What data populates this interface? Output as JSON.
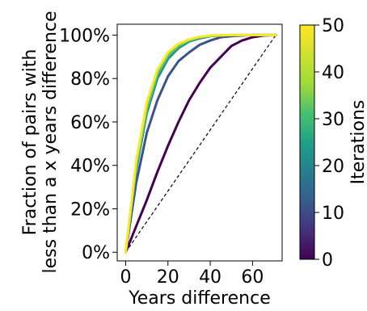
{
  "chart_data": {
    "type": "line",
    "xlabel": "Years difference",
    "ylabel_line1": "Fraction of pairs with",
    "ylabel_line2": "less than a x years difference",
    "xlim": [
      -4,
      74
    ],
    "ylim": [
      -0.04,
      1.05
    ],
    "x_ticks": [
      0,
      20,
      40,
      60
    ],
    "y_ticks": [
      0,
      0.2,
      0.4,
      0.6,
      0.8,
      1.0
    ],
    "y_tick_labels": [
      "0%",
      "20%",
      "40%",
      "60%",
      "80%",
      "100%"
    ],
    "colorbar": {
      "label": "Iterations",
      "range": [
        0,
        50
      ],
      "ticks": [
        0,
        10,
        20,
        30,
        40,
        50
      ],
      "colormap": "viridis"
    },
    "diagonal_reference": {
      "x": [
        0,
        71
      ],
      "y": [
        0,
        1
      ],
      "style": "dashed",
      "color": "#000000"
    },
    "series": [
      {
        "iteration": 0,
        "color": "#440154",
        "x": [
          0,
          5,
          10,
          15,
          20,
          25,
          30,
          35,
          40,
          45,
          50,
          55,
          60,
          65,
          71
        ],
        "y": [
          0,
          0.12,
          0.24,
          0.37,
          0.49,
          0.6,
          0.7,
          0.78,
          0.85,
          0.9,
          0.95,
          0.975,
          0.99,
          0.998,
          1.0
        ]
      },
      {
        "iteration": 10,
        "color": "#3b528b",
        "x": [
          0,
          5,
          10,
          15,
          20,
          25,
          30,
          35,
          40,
          45,
          50,
          55,
          60,
          71
        ],
        "y": [
          0,
          0.32,
          0.55,
          0.7,
          0.81,
          0.88,
          0.92,
          0.955,
          0.975,
          0.99,
          0.995,
          0.998,
          1.0,
          1.0
        ]
      },
      {
        "iteration": 25,
        "color": "#21918c",
        "x": [
          0,
          5,
          10,
          15,
          20,
          25,
          30,
          35,
          40,
          50,
          60,
          71
        ],
        "y": [
          0,
          0.38,
          0.64,
          0.8,
          0.89,
          0.94,
          0.97,
          0.985,
          0.995,
          1.0,
          1.0,
          1.0
        ]
      },
      {
        "iteration": 40,
        "color": "#5ec962",
        "x": [
          0,
          5,
          10,
          15,
          20,
          25,
          30,
          35,
          40,
          50,
          60,
          71
        ],
        "y": [
          0,
          0.4,
          0.66,
          0.82,
          0.905,
          0.95,
          0.975,
          0.99,
          0.997,
          1.0,
          1.0,
          1.0
        ]
      },
      {
        "iteration": 50,
        "color": "#fde725",
        "x": [
          0,
          5,
          10,
          15,
          20,
          25,
          30,
          35,
          40,
          50,
          60,
          71
        ],
        "y": [
          0,
          0.42,
          0.69,
          0.84,
          0.92,
          0.96,
          0.98,
          0.992,
          0.998,
          1.0,
          1.0,
          1.0
        ]
      }
    ]
  }
}
